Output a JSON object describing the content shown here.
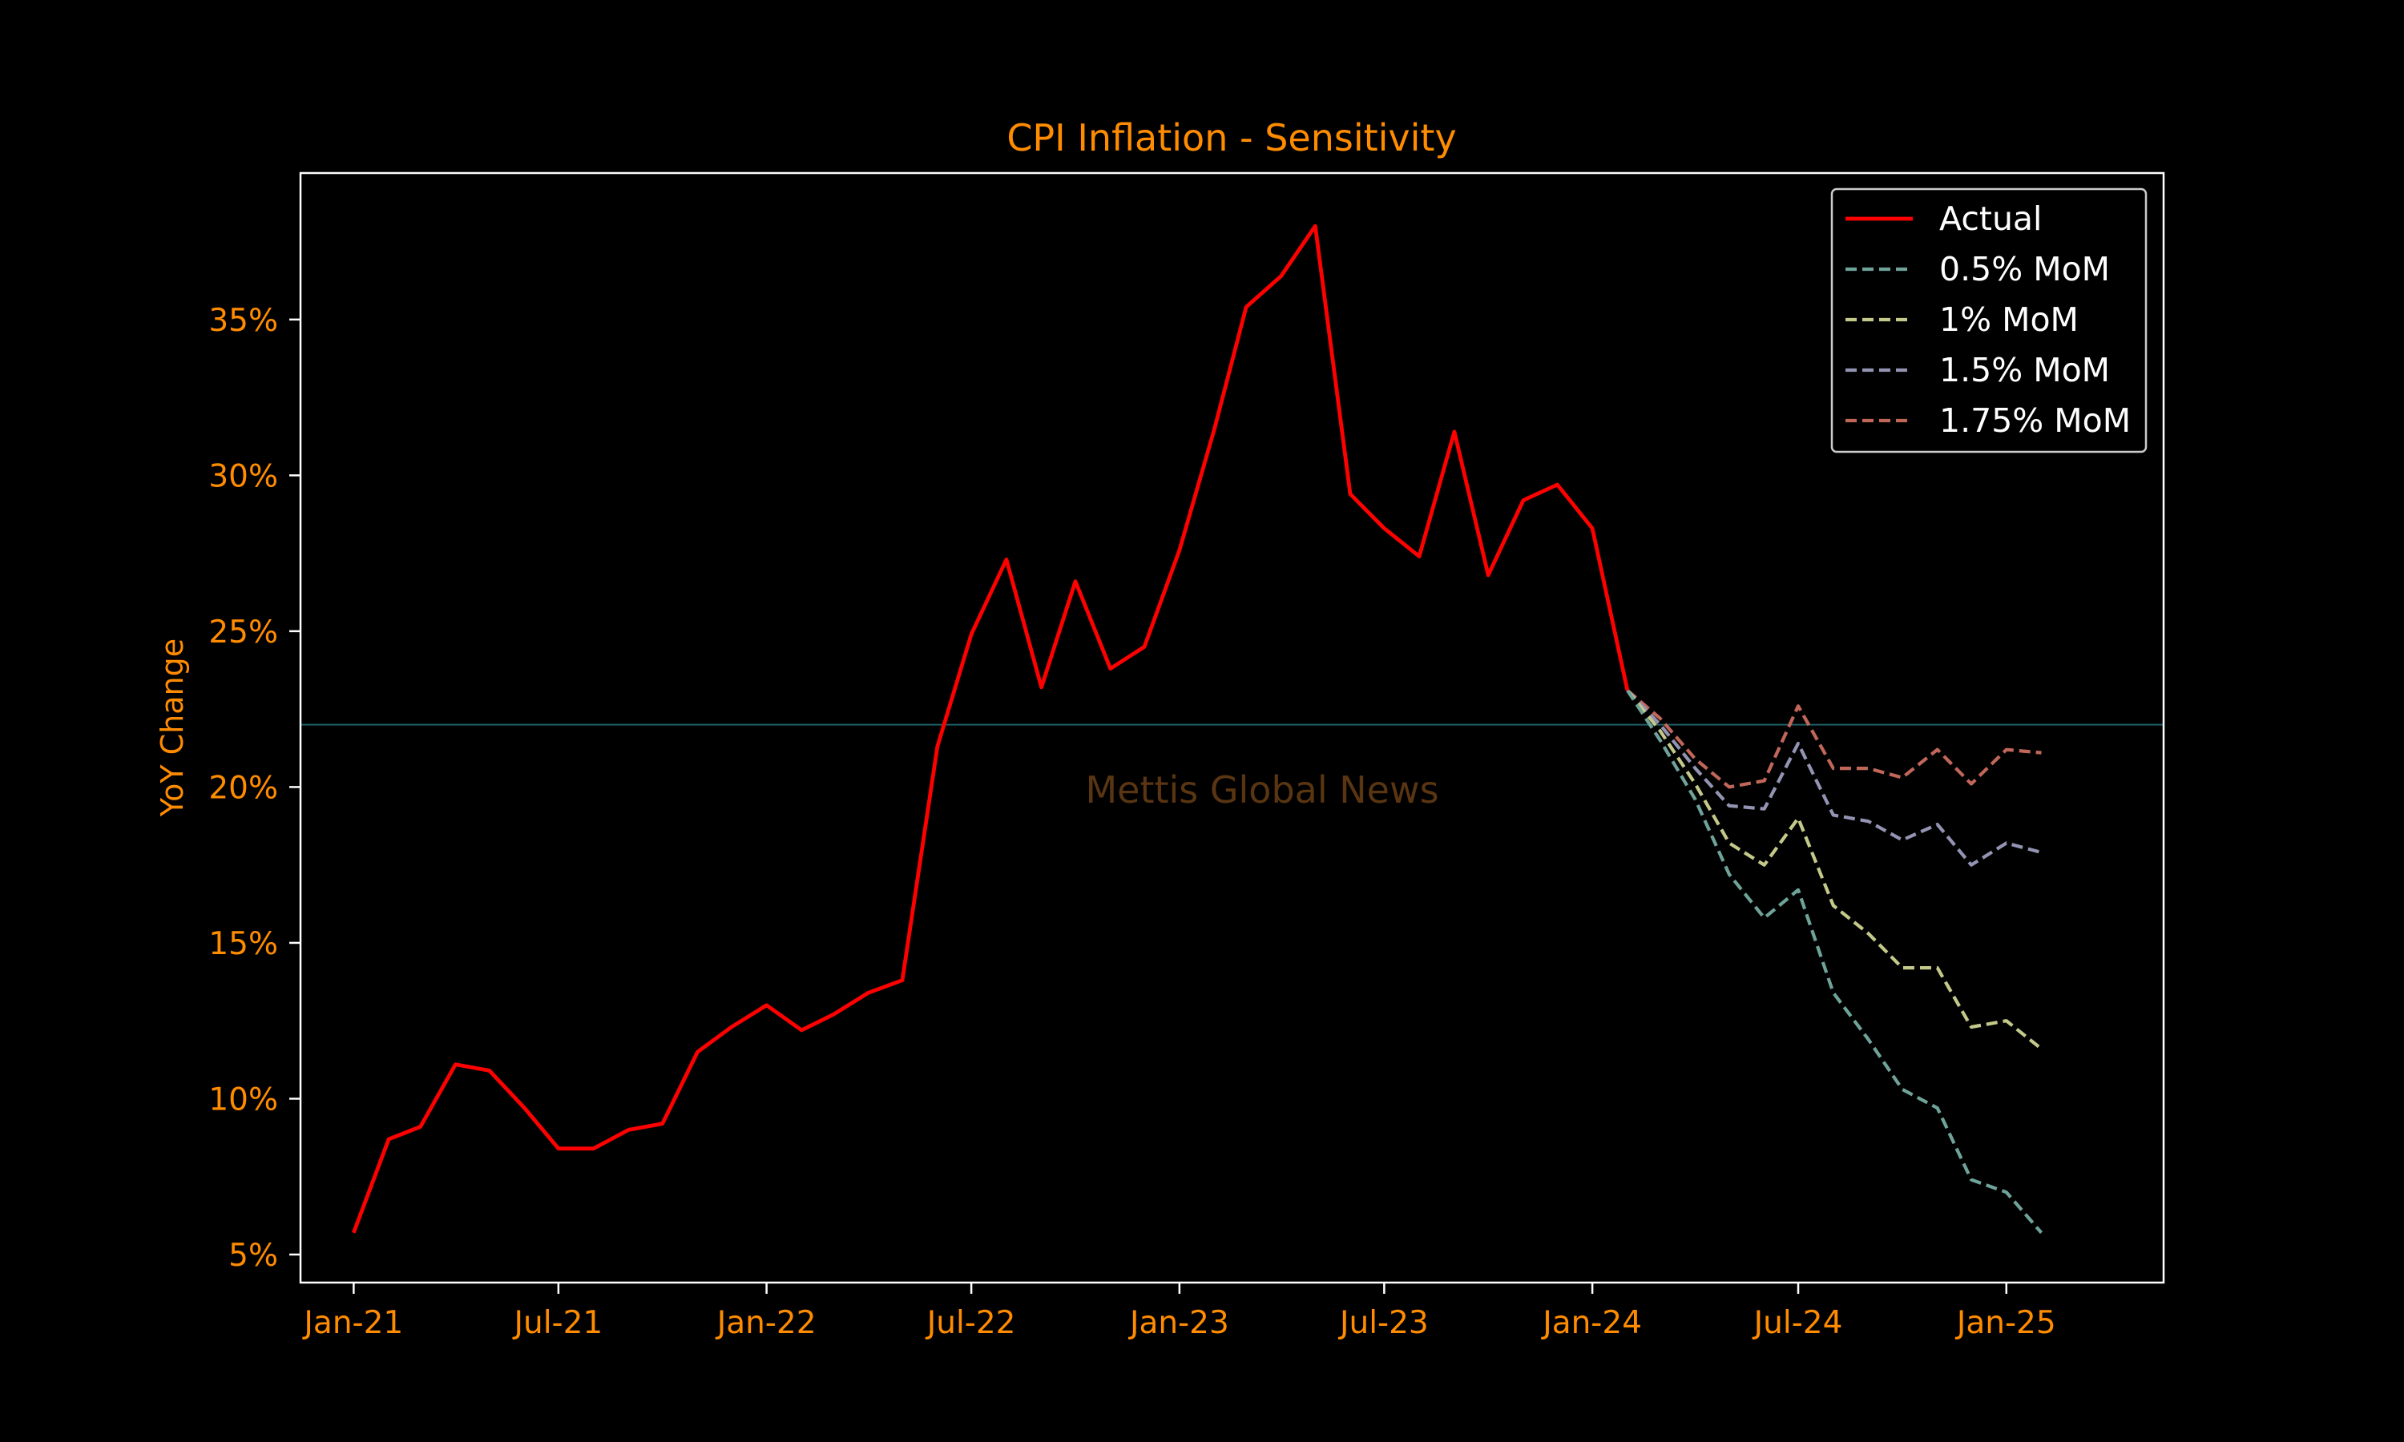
{
  "chart_data": {
    "type": "line",
    "title": "CPI Inflation - Sensitivity",
    "xlabel": "",
    "ylabel": "YoY Change",
    "x_ticks": [
      "Jan-21",
      "Jul-21",
      "Jan-22",
      "Jul-22",
      "Jan-23",
      "Jul-23",
      "Jan-24",
      "Jul-24",
      "Jan-25"
    ],
    "y_ticks": [
      "5%",
      "10%",
      "15%",
      "20%",
      "25%",
      "30%",
      "35%"
    ],
    "y_tick_values": [
      5,
      10,
      15,
      20,
      25,
      30,
      35
    ],
    "xlim": [
      "2020-11-15",
      "2025-05-20"
    ],
    "ylim": [
      4.1,
      39.7
    ],
    "reference_line": {
      "y": 22,
      "color": "#1e5f66"
    },
    "grid": false,
    "legend_position": "top-right",
    "series": [
      {
        "name": "Actual",
        "color": "#ff0000",
        "style": "solid",
        "points": [
          [
            "2021-01",
            5.7
          ],
          [
            "2021-02",
            8.7
          ],
          [
            "2021-03",
            9.1
          ],
          [
            "2021-04",
            11.1
          ],
          [
            "2021-05",
            10.9
          ],
          [
            "2021-06",
            9.7
          ],
          [
            "2021-07",
            8.4
          ],
          [
            "2021-08",
            8.4
          ],
          [
            "2021-09",
            9.0
          ],
          [
            "2021-10",
            9.2
          ],
          [
            "2021-11",
            11.5
          ],
          [
            "2021-12",
            12.3
          ],
          [
            "2022-01",
            13.0
          ],
          [
            "2022-02",
            12.2
          ],
          [
            "2022-03",
            12.7
          ],
          [
            "2022-04",
            13.4
          ],
          [
            "2022-05",
            13.8
          ],
          [
            "2022-06",
            21.3
          ],
          [
            "2022-07",
            24.9
          ],
          [
            "2022-08",
            27.3
          ],
          [
            "2022-09",
            23.2
          ],
          [
            "2022-10",
            26.6
          ],
          [
            "2022-11",
            23.8
          ],
          [
            "2022-12",
            24.5
          ],
          [
            "2023-01",
            27.6
          ],
          [
            "2023-02",
            31.5
          ],
          [
            "2023-03",
            35.4
          ],
          [
            "2023-04",
            36.4
          ],
          [
            "2023-05",
            38.0
          ],
          [
            "2023-06",
            29.4
          ],
          [
            "2023-07",
            28.3
          ],
          [
            "2023-08",
            27.4
          ],
          [
            "2023-09",
            31.4
          ],
          [
            "2023-10",
            26.8
          ],
          [
            "2023-11",
            29.2
          ],
          [
            "2023-12",
            29.7
          ],
          [
            "2024-01",
            28.3
          ],
          [
            "2024-02",
            23.1
          ]
        ]
      },
      {
        "name": "0.5% MoM",
        "color": "#6fa39a",
        "style": "dashed",
        "points": [
          [
            "2024-02",
            23.1
          ],
          [
            "2024-03",
            21.5
          ],
          [
            "2024-04",
            19.6
          ],
          [
            "2024-05",
            17.2
          ],
          [
            "2024-06",
            15.8
          ],
          [
            "2024-07",
            16.7
          ],
          [
            "2024-08",
            13.4
          ],
          [
            "2024-09",
            11.9
          ],
          [
            "2024-10",
            10.3
          ],
          [
            "2024-11",
            9.7
          ],
          [
            "2024-12",
            7.4
          ],
          [
            "2025-01",
            7.0
          ],
          [
            "2025-02",
            5.7
          ]
        ]
      },
      {
        "name": "1% MoM",
        "color": "#c4c98a",
        "style": "dashed",
        "points": [
          [
            "2024-02",
            23.1
          ],
          [
            "2024-03",
            21.8
          ],
          [
            "2024-04",
            20.1
          ],
          [
            "2024-05",
            18.2
          ],
          [
            "2024-06",
            17.5
          ],
          [
            "2024-07",
            19.0
          ],
          [
            "2024-08",
            16.2
          ],
          [
            "2024-09",
            15.3
          ],
          [
            "2024-10",
            14.2
          ],
          [
            "2024-11",
            14.2
          ],
          [
            "2024-12",
            12.3
          ],
          [
            "2025-01",
            12.5
          ],
          [
            "2025-02",
            11.6
          ]
        ]
      },
      {
        "name": "1.5% MoM",
        "color": "#9294b2",
        "style": "dashed",
        "points": [
          [
            "2024-02",
            23.1
          ],
          [
            "2024-03",
            22.0
          ],
          [
            "2024-04",
            20.6
          ],
          [
            "2024-05",
            19.4
          ],
          [
            "2024-06",
            19.3
          ],
          [
            "2024-07",
            21.4
          ],
          [
            "2024-08",
            19.1
          ],
          [
            "2024-09",
            18.9
          ],
          [
            "2024-10",
            18.3
          ],
          [
            "2024-11",
            18.8
          ],
          [
            "2024-12",
            17.5
          ],
          [
            "2025-01",
            18.2
          ],
          [
            "2025-02",
            17.9
          ]
        ]
      },
      {
        "name": "1.75% MoM",
        "color": "#c0675a",
        "style": "dashed",
        "points": [
          [
            "2024-02",
            23.1
          ],
          [
            "2024-03",
            22.2
          ],
          [
            "2024-04",
            20.9
          ],
          [
            "2024-05",
            20.0
          ],
          [
            "2024-06",
            20.2
          ],
          [
            "2024-07",
            22.6
          ],
          [
            "2024-08",
            20.6
          ],
          [
            "2024-09",
            20.6
          ],
          [
            "2024-10",
            20.3
          ],
          [
            "2024-11",
            21.2
          ],
          [
            "2024-12",
            20.1
          ],
          [
            "2025-01",
            21.2
          ],
          [
            "2025-02",
            21.1
          ]
        ]
      }
    ]
  },
  "watermark": "Mettis Global News",
  "colors": {
    "background": "#000000",
    "text": "#ff8c00",
    "axes": "#ffffff",
    "legend_frame": "#cccccc"
  }
}
